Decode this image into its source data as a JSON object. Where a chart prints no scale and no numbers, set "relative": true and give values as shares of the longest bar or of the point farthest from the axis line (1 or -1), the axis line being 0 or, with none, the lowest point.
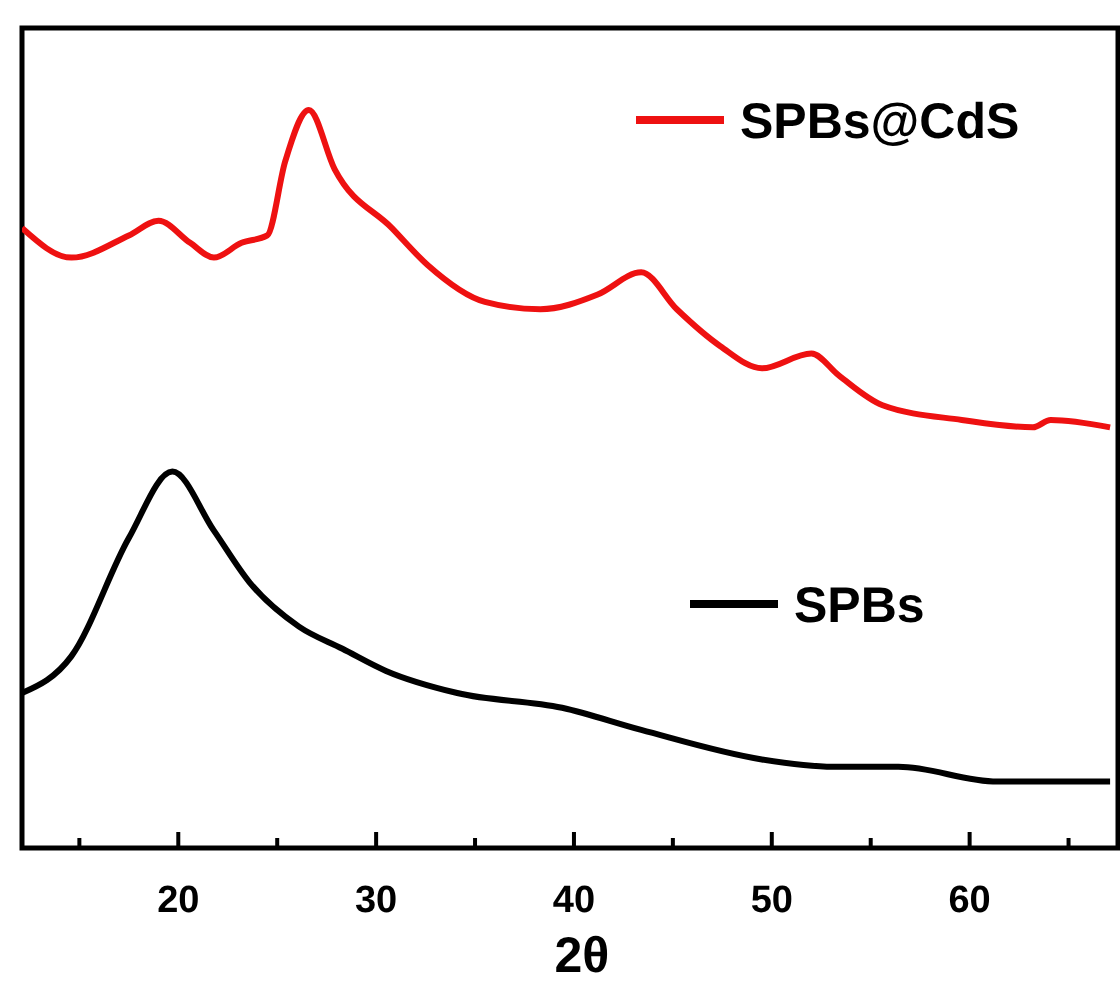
{
  "chart_data": {
    "type": "line",
    "xlabel": "2θ",
    "relative": true,
    "legend": "right",
    "grid": false,
    "line_style": "solid",
    "xlim": [
      12.1,
      67.5
    ],
    "xticks": [
      {
        "value": 15,
        "label": null
      },
      20,
      {
        "value": 25,
        "label": null
      },
      30,
      {
        "value": 35,
        "label": null
      },
      40,
      {
        "value": 45,
        "label": null
      },
      50,
      {
        "value": 55,
        "label": null
      },
      60,
      {
        "value": 65,
        "label": null
      }
    ],
    "series": [
      {
        "name": "SPBs@CdS",
        "color": "#ee1111",
        "x": [
          12.1,
          14.6,
          17.5,
          19.0,
          20.6,
          21.8,
          23.2,
          24.5,
          25.4,
          26.6,
          27.9,
          30.8,
          32.6,
          35.5,
          38.3,
          41.2,
          43.4,
          45.2,
          47.4,
          49.5,
          52.0,
          53.4,
          55.6,
          59.6,
          63.2,
          64.1,
          67.1
        ],
        "values": [
          0.84,
          0.8,
          0.83,
          0.85,
          0.82,
          0.8,
          0.82,
          0.83,
          0.93,
          1.0,
          0.92,
          0.84,
          0.79,
          0.74,
          0.73,
          0.75,
          0.78,
          0.73,
          0.68,
          0.65,
          0.67,
          0.64,
          0.6,
          0.58,
          0.57,
          0.58,
          0.57
        ]
      },
      {
        "name": "SPBs",
        "color": "#000000",
        "x": [
          12.1,
          14.6,
          17.5,
          19.7,
          21.8,
          23.6,
          26.1,
          28.3,
          30.5,
          34.1,
          39.4,
          43.4,
          49.5,
          53.1,
          56.4,
          61.4,
          67.1
        ],
        "values": [
          0.21,
          0.26,
          0.42,
          0.51,
          0.43,
          0.36,
          0.3,
          0.27,
          0.24,
          0.21,
          0.19,
          0.16,
          0.12,
          0.11,
          0.11,
          0.09,
          0.09
        ]
      }
    ]
  }
}
